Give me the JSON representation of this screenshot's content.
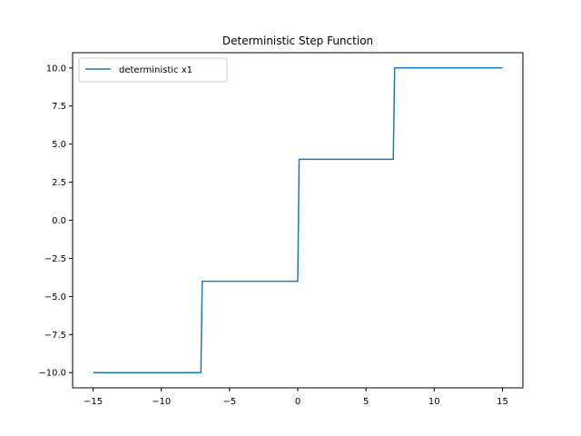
{
  "chart_data": {
    "type": "line",
    "title": "Deterministic Step Function",
    "xlabel": "",
    "ylabel": "",
    "xlim": [
      -16.5,
      16.5
    ],
    "ylim": [
      -11.0,
      11.0
    ],
    "x_ticks": [
      -15,
      -10,
      -5,
      0,
      5,
      10,
      15
    ],
    "x_tick_labels": [
      "−15",
      "−10",
      "−5",
      "0",
      "5",
      "10",
      "15"
    ],
    "y_ticks": [
      -10,
      -7.5,
      -5,
      -2.5,
      0,
      2.5,
      5,
      7.5,
      10
    ],
    "y_tick_labels": [
      "−10.0",
      "−7.5",
      "−5.0",
      "−2.5",
      "0.0",
      "2.5",
      "5.0",
      "7.5",
      "10.0"
    ],
    "grid": false,
    "legend_position": "top-left",
    "series": [
      {
        "name": "deterministic x1",
        "color": "#1f77b4",
        "x": [
          -15,
          -7.1,
          -7.0,
          0.0,
          0.1,
          7.0,
          7.1,
          15
        ],
        "y": [
          -10,
          -10,
          -4,
          -4,
          4,
          4,
          10,
          10
        ]
      }
    ]
  }
}
